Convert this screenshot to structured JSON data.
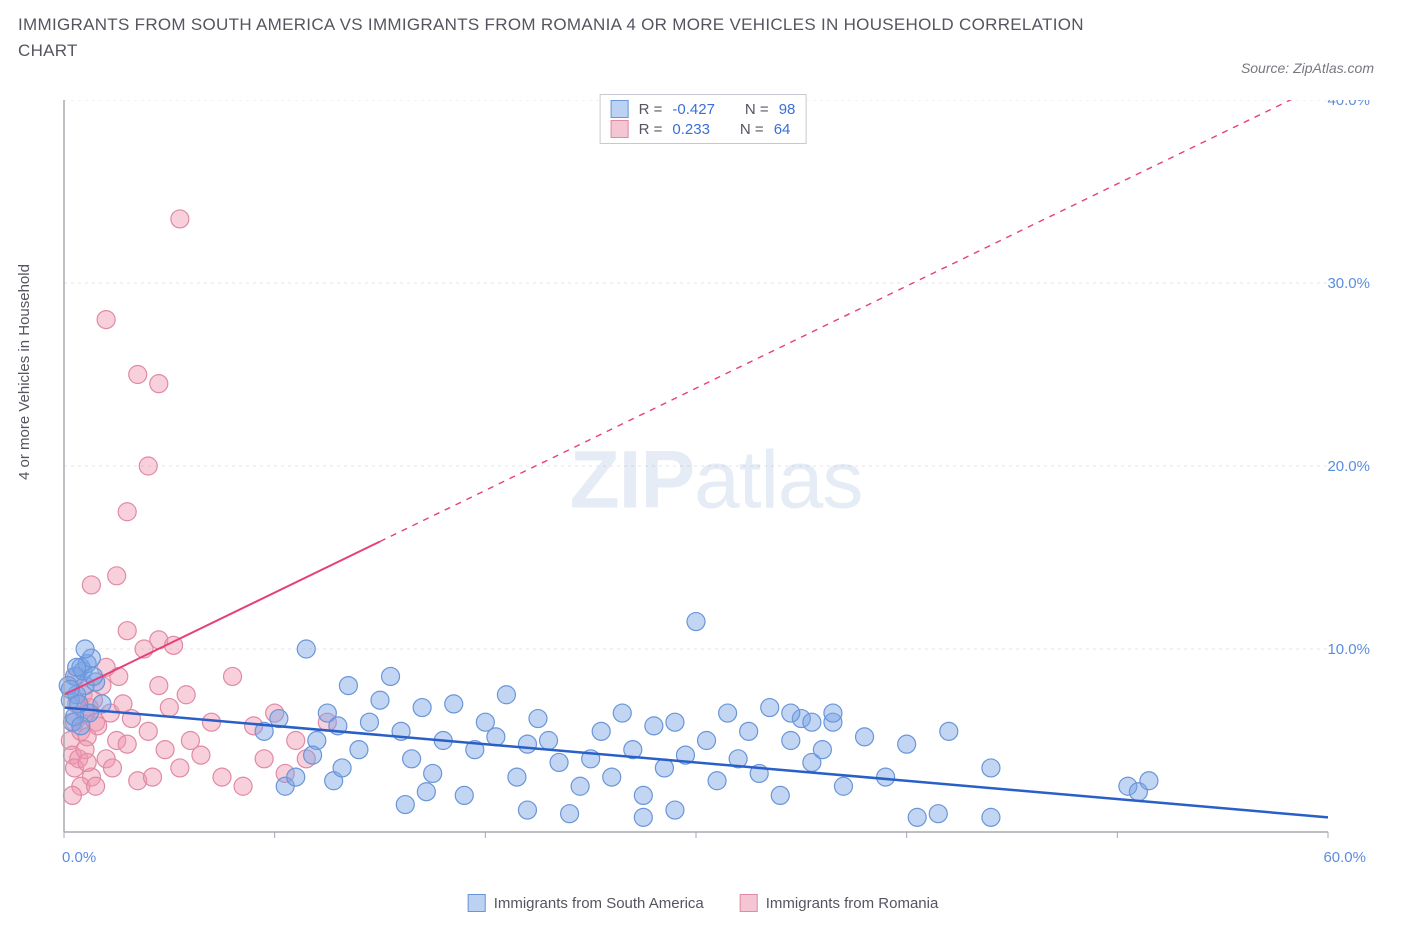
{
  "title": "IMMIGRANTS FROM SOUTH AMERICA VS IMMIGRANTS FROM ROMANIA 4 OR MORE VEHICLES IN HOUSEHOLD CORRELATION CHART",
  "source_label": "Source: ZipAtlas.com",
  "ylabel": "4 or more Vehicles in Household",
  "watermark": {
    "bold": "ZIP",
    "light": "atlas"
  },
  "chart": {
    "type": "scatter",
    "background_color": "#ffffff",
    "grid_color": "#e4e4e8",
    "axis_color": "#a8a8b0",
    "xlim": [
      0,
      60
    ],
    "ylim_left": [
      0,
      40
    ],
    "ylim_right": [
      0,
      60
    ],
    "x_ticks": [
      0,
      10,
      20,
      30,
      40,
      50,
      60
    ],
    "x_tick_labels": [
      "0.0%",
      "",
      "",
      "",
      "",
      "",
      "60.0%"
    ],
    "y_right_ticks": [
      10,
      20,
      30,
      40
    ],
    "y_right_labels": [
      "10.0%",
      "20.0%",
      "30.0%",
      "40.0%"
    ],
    "label_color": "#5a8de0",
    "label_fontsize": 15,
    "series": [
      {
        "name": "Immigrants from South America",
        "color_fill": "rgba(120,165,230,0.45)",
        "color_stroke": "#6a95d8",
        "swatch_fill": "#bcd2f2",
        "swatch_border": "#6a95d8",
        "marker_radius": 9,
        "R": "-0.427",
        "N": "98",
        "trend": {
          "x1": 0,
          "y1": 6.8,
          "x2": 60,
          "y2": 0.8,
          "solid_until_x": 60,
          "color": "#2a5fc8",
          "width": 2.5
        },
        "points": [
          [
            0.5,
            8.5
          ],
          [
            0.3,
            7.2
          ],
          [
            0.8,
            9.0
          ],
          [
            1.0,
            8.0
          ],
          [
            1.2,
            6.5
          ],
          [
            0.6,
            7.5
          ],
          [
            0.9,
            8.8
          ],
          [
            1.1,
            9.2
          ],
          [
            0.4,
            6.0
          ],
          [
            0.7,
            7.0
          ],
          [
            1.5,
            8.2
          ],
          [
            1.3,
            9.5
          ],
          [
            1.8,
            7.0
          ],
          [
            0.2,
            8.0
          ],
          [
            0.5,
            6.3
          ],
          [
            0.8,
            5.8
          ],
          [
            1.0,
            10.0
          ],
          [
            1.4,
            8.5
          ],
          [
            0.6,
            9.0
          ],
          [
            0.3,
            7.8
          ],
          [
            9.5,
            5.5
          ],
          [
            10.2,
            6.2
          ],
          [
            11.5,
            10.0
          ],
          [
            12.0,
            5.0
          ],
          [
            12.5,
            6.5
          ],
          [
            13.0,
            5.8
          ],
          [
            13.5,
            8.0
          ],
          [
            14.0,
            4.5
          ],
          [
            14.5,
            6.0
          ],
          [
            15.0,
            7.2
          ],
          [
            10.5,
            2.5
          ],
          [
            11.0,
            3.0
          ],
          [
            11.8,
            4.2
          ],
          [
            12.8,
            2.8
          ],
          [
            13.2,
            3.5
          ],
          [
            16.0,
            5.5
          ],
          [
            16.5,
            4.0
          ],
          [
            17.0,
            6.8
          ],
          [
            17.5,
            3.2
          ],
          [
            18.0,
            5.0
          ],
          [
            15.5,
            8.5
          ],
          [
            18.5,
            7.0
          ],
          [
            19.0,
            2.0
          ],
          [
            19.5,
            4.5
          ],
          [
            20.0,
            6.0
          ],
          [
            20.5,
            5.2
          ],
          [
            21.0,
            7.5
          ],
          [
            21.5,
            3.0
          ],
          [
            22.0,
            4.8
          ],
          [
            22.5,
            6.2
          ],
          [
            16.2,
            1.5
          ],
          [
            17.2,
            2.2
          ],
          [
            23.0,
            5.0
          ],
          [
            23.5,
            3.8
          ],
          [
            24.0,
            1.0
          ],
          [
            24.5,
            2.5
          ],
          [
            25.0,
            4.0
          ],
          [
            25.5,
            5.5
          ],
          [
            26.0,
            3.0
          ],
          [
            26.5,
            6.5
          ],
          [
            22.0,
            1.2
          ],
          [
            27.0,
            4.5
          ],
          [
            27.5,
            2.0
          ],
          [
            28.0,
            5.8
          ],
          [
            28.5,
            3.5
          ],
          [
            29.0,
            6.0
          ],
          [
            29.5,
            4.2
          ],
          [
            30.0,
            11.5
          ],
          [
            30.5,
            5.0
          ],
          [
            31.0,
            2.8
          ],
          [
            27.5,
            0.8
          ],
          [
            31.5,
            6.5
          ],
          [
            32.0,
            4.0
          ],
          [
            32.5,
            5.5
          ],
          [
            33.0,
            3.2
          ],
          [
            33.5,
            6.8
          ],
          [
            34.0,
            2.0
          ],
          [
            34.5,
            5.0
          ],
          [
            35.0,
            6.2
          ],
          [
            35.5,
            3.8
          ],
          [
            29.0,
            1.2
          ],
          [
            36.0,
            4.5
          ],
          [
            36.5,
            6.0
          ],
          [
            37.0,
            2.5
          ],
          [
            38.0,
            5.2
          ],
          [
            39.0,
            3.0
          ],
          [
            40.0,
            4.8
          ],
          [
            41.5,
            1.0
          ],
          [
            42.0,
            5.5
          ],
          [
            44.0,
            3.5
          ],
          [
            40.5,
            0.8
          ],
          [
            44.0,
            0.8
          ],
          [
            50.5,
            2.5
          ],
          [
            51.0,
            2.2
          ],
          [
            51.5,
            2.8
          ],
          [
            34.5,
            6.5
          ],
          [
            36.5,
            6.5
          ],
          [
            35.5,
            6.0
          ]
        ]
      },
      {
        "name": "Immigrants from Romania",
        "color_fill": "rgba(240,150,175,0.45)",
        "color_stroke": "#e08aa5",
        "swatch_fill": "#f4c6d4",
        "swatch_border": "#e08aa5",
        "marker_radius": 9,
        "R": "0.233",
        "N": "64",
        "trend": {
          "x1": 0,
          "y1": 7.5,
          "x2": 60,
          "y2": 41.0,
          "solid_until_x": 15,
          "color": "#e6407a",
          "width": 2
        },
        "points": [
          [
            0.3,
            5.0
          ],
          [
            0.5,
            6.0
          ],
          [
            0.4,
            4.2
          ],
          [
            0.6,
            7.0
          ],
          [
            0.8,
            5.5
          ],
          [
            1.0,
            6.5
          ],
          [
            0.7,
            4.0
          ],
          [
            0.9,
            7.5
          ],
          [
            1.1,
            5.2
          ],
          [
            0.5,
            3.5
          ],
          [
            1.2,
            6.8
          ],
          [
            0.6,
            8.5
          ],
          [
            1.3,
            3.0
          ],
          [
            0.8,
            2.5
          ],
          [
            1.4,
            7.2
          ],
          [
            1.0,
            4.5
          ],
          [
            1.5,
            6.0
          ],
          [
            0.4,
            2.0
          ],
          [
            1.6,
            5.8
          ],
          [
            1.1,
            3.8
          ],
          [
            1.8,
            8.0
          ],
          [
            2.0,
            4.0
          ],
          [
            2.2,
            6.5
          ],
          [
            2.5,
            5.0
          ],
          [
            2.8,
            7.0
          ],
          [
            1.5,
            2.5
          ],
          [
            2.0,
            9.0
          ],
          [
            2.3,
            3.5
          ],
          [
            2.6,
            8.5
          ],
          [
            3.0,
            4.8
          ],
          [
            3.2,
            6.2
          ],
          [
            3.5,
            2.8
          ],
          [
            3.8,
            10.0
          ],
          [
            4.0,
            5.5
          ],
          [
            4.2,
            3.0
          ],
          [
            4.5,
            8.0
          ],
          [
            1.3,
            13.5
          ],
          [
            4.8,
            4.5
          ],
          [
            5.0,
            6.8
          ],
          [
            3.0,
            11.0
          ],
          [
            4.5,
            10.5
          ],
          [
            5.2,
            10.2
          ],
          [
            5.5,
            3.5
          ],
          [
            5.8,
            7.5
          ],
          [
            6.0,
            5.0
          ],
          [
            2.5,
            14.0
          ],
          [
            6.5,
            4.2
          ],
          [
            7.0,
            6.0
          ],
          [
            3.0,
            17.5
          ],
          [
            7.5,
            3.0
          ],
          [
            8.0,
            8.5
          ],
          [
            4.0,
            20.0
          ],
          [
            8.5,
            2.5
          ],
          [
            9.0,
            5.8
          ],
          [
            3.5,
            25.0
          ],
          [
            9.5,
            4.0
          ],
          [
            4.5,
            24.5
          ],
          [
            2.0,
            28.0
          ],
          [
            10.0,
            6.5
          ],
          [
            10.5,
            3.2
          ],
          [
            5.5,
            33.5
          ],
          [
            11.0,
            5.0
          ],
          [
            11.5,
            4.0
          ],
          [
            12.5,
            6.0
          ]
        ]
      }
    ]
  },
  "top_legend": {
    "r_prefix": "R =",
    "n_prefix": "N ="
  },
  "bottom_legend_labels": [
    "Immigrants from South America",
    "Immigrants from Romania"
  ]
}
